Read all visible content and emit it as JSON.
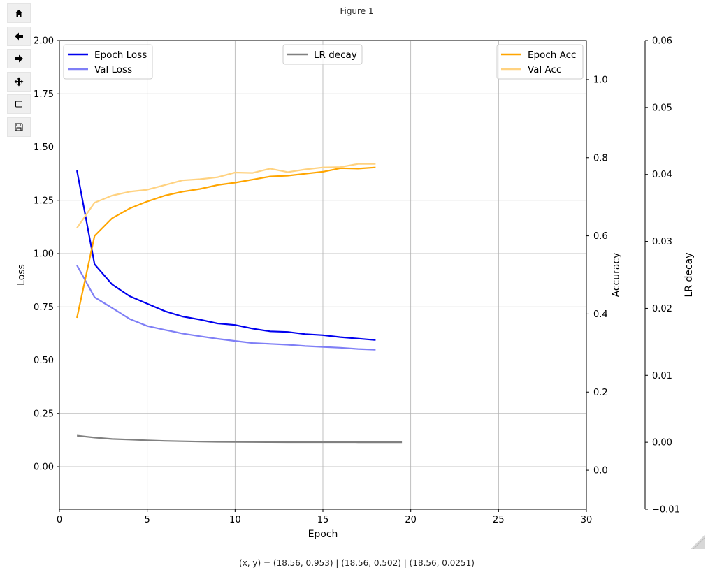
{
  "window": {
    "figure_title": "Figure 1"
  },
  "toolbar": [
    {
      "name": "home-button",
      "icon": "home-icon"
    },
    {
      "name": "back-button",
      "icon": "arrow-left-icon"
    },
    {
      "name": "forward-button",
      "icon": "arrow-right-icon"
    },
    {
      "name": "pan-button",
      "icon": "move-icon"
    },
    {
      "name": "zoom-button",
      "icon": "zoom-rect-icon"
    },
    {
      "name": "save-button",
      "icon": "save-icon"
    }
  ],
  "status_bar": {
    "coords": "(x, y) = (18.56, 0.953) | (18.56, 0.502) | (18.56, 0.0251)"
  },
  "chart_data": {
    "type": "line",
    "xlabel": "Epoch",
    "xlim": [
      0,
      30
    ],
    "x_ticks": [
      0,
      5,
      10,
      15,
      20,
      25,
      30
    ],
    "grid": true,
    "axes": {
      "loss": {
        "label": "Loss",
        "ylim": [
          -0.2,
          2.0
        ],
        "ticks": [
          "0.00",
          "0.25",
          "0.50",
          "0.75",
          "1.00",
          "1.25",
          "1.50",
          "1.75",
          "2.00"
        ]
      },
      "accuracy": {
        "label": "Accuracy",
        "ylim": [
          -0.1,
          1.1
        ],
        "ticks": [
          "0.0",
          "0.2",
          "0.4",
          "0.6",
          "0.8",
          "1.0"
        ]
      },
      "lr": {
        "label": "LR decay",
        "ylim": [
          -0.01,
          0.06
        ],
        "ticks": [
          "−0.01",
          "0.00",
          "0.01",
          "0.02",
          "0.03",
          "0.04",
          "0.05",
          "0.06"
        ]
      }
    },
    "legends": {
      "loss": {
        "placement": "upper-left"
      },
      "lr": {
        "placement": "upper-center"
      },
      "accuracy": {
        "placement": "upper-right"
      }
    },
    "series": [
      {
        "name": "Epoch Loss",
        "axis": "loss",
        "color": "#0000ee",
        "x": [
          1,
          2,
          3,
          4,
          5,
          6,
          7,
          8,
          9,
          10,
          11,
          12,
          13,
          14,
          15,
          16,
          17,
          18
        ],
        "y": [
          1.39,
          0.95,
          0.855,
          0.8,
          0.765,
          0.73,
          0.705,
          0.69,
          0.672,
          0.665,
          0.648,
          0.635,
          0.632,
          0.622,
          0.617,
          0.608,
          0.601,
          0.594
        ]
      },
      {
        "name": "Val Loss",
        "axis": "loss",
        "color": "#7f7ff6",
        "x": [
          1,
          2,
          3,
          4,
          5,
          6,
          7,
          8,
          9,
          10,
          11,
          12,
          13,
          14,
          15,
          16,
          17,
          18
        ],
        "y": [
          0.945,
          0.795,
          0.745,
          0.693,
          0.66,
          0.642,
          0.625,
          0.612,
          0.6,
          0.59,
          0.58,
          0.576,
          0.572,
          0.566,
          0.562,
          0.558,
          0.552,
          0.549
        ]
      },
      {
        "name": "Epoch Acc",
        "axis": "accuracy",
        "color": "#ffa500",
        "x": [
          1,
          2,
          3,
          4,
          5,
          6,
          7,
          8,
          9,
          10,
          11,
          12,
          13,
          14,
          15,
          16,
          17,
          18
        ],
        "y": [
          0.39,
          0.6,
          0.645,
          0.67,
          0.688,
          0.703,
          0.713,
          0.72,
          0.73,
          0.736,
          0.744,
          0.752,
          0.754,
          0.759,
          0.764,
          0.773,
          0.772,
          0.775
        ]
      },
      {
        "name": "Val Acc",
        "axis": "accuracy",
        "color": "#ffd280",
        "x": [
          1,
          2,
          3,
          4,
          5,
          6,
          7,
          8,
          9,
          10,
          11,
          12,
          13,
          14,
          15,
          16,
          17,
          18
        ],
        "y": [
          0.62,
          0.685,
          0.703,
          0.713,
          0.718,
          0.73,
          0.742,
          0.745,
          0.75,
          0.762,
          0.761,
          0.772,
          0.763,
          0.77,
          0.775,
          0.776,
          0.784,
          0.784
        ]
      },
      {
        "name": "LR decay",
        "axis": "lr",
        "color": "#808080",
        "x": [
          1,
          2,
          3,
          4,
          5,
          6,
          7,
          8,
          9,
          10,
          11,
          12,
          13,
          14,
          15,
          16,
          17,
          18,
          19,
          19.5
        ],
        "y": [
          0.001,
          0.0007,
          0.0005,
          0.0004,
          0.0003,
          0.0002,
          0.00015,
          0.0001,
          7e-05,
          5e-05,
          4e-05,
          3e-05,
          2e-05,
          2e-05,
          1e-05,
          1e-05,
          0.0,
          0.0,
          0.0,
          0.0
        ]
      }
    ]
  }
}
